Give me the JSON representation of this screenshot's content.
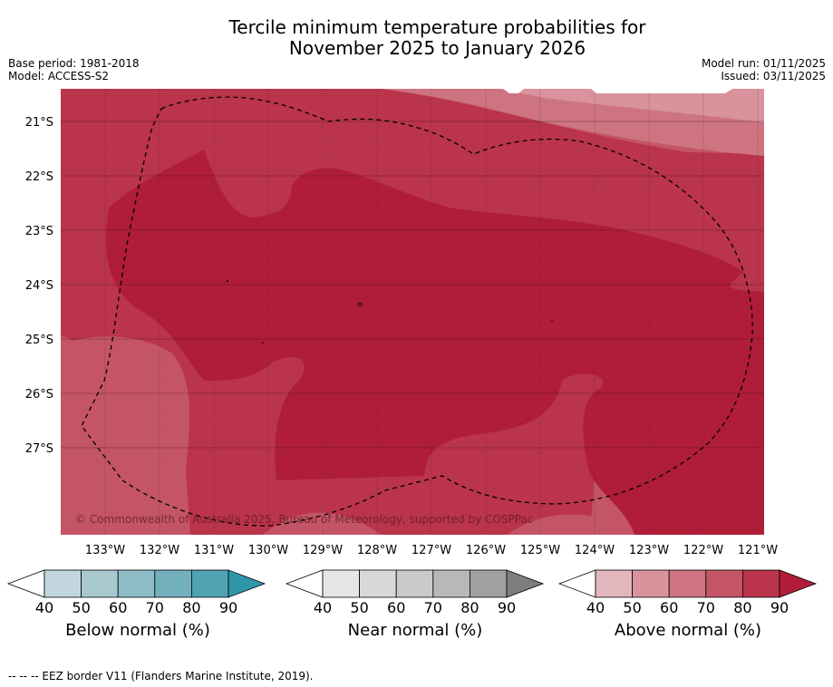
{
  "title": {
    "line1": "Tercile minimum temperature probabilities for",
    "line2": "November 2025 to January 2026"
  },
  "meta": {
    "base_period": "Base period: 1981-2018",
    "model": "Model: ACCESS-S2",
    "model_run": "Model run: 01/11/2025",
    "issued": "Issued: 03/11/2025"
  },
  "map": {
    "lat_labels": [
      "21°S",
      "22°S",
      "23°S",
      "24°S",
      "25°S",
      "26°S",
      "27°S"
    ],
    "lon_labels": [
      "133°W",
      "132°W",
      "131°W",
      "130°W",
      "129°W",
      "128°W",
      "127°W",
      "126°W",
      "125°W",
      "124°W",
      "123°W",
      "122°W",
      "121°W"
    ],
    "copyright": "© Commonwealth of Australia 2025, Bureau of Meteorology, supported by COSPPac"
  },
  "legends": [
    {
      "title": "Below normal (%)",
      "ticks": [
        "40",
        "50",
        "60",
        "70",
        "80",
        "90"
      ],
      "colors": [
        "#c1d7dd",
        "#a8c9d0",
        "#8ebcc7",
        "#73b0be",
        "#50a3b3",
        "#2f96aa"
      ]
    },
    {
      "title": "Near normal (%)",
      "ticks": [
        "40",
        "50",
        "60",
        "70",
        "80",
        "90"
      ],
      "colors": [
        "#e6e6e6",
        "#d8d8d8",
        "#cacaca",
        "#b8b8b8",
        "#a0a0a0",
        "#7e7e7e"
      ]
    },
    {
      "title": "Above normal (%)",
      "ticks": [
        "40",
        "50",
        "60",
        "70",
        "80",
        "90"
      ],
      "colors": [
        "#e3b6bd",
        "#d8939d",
        "#cd7480",
        "#c45566",
        "#ba344b",
        "#af1d39"
      ]
    }
  ],
  "footer": "--  --  -- EEZ border V11 (Flanders Marine Institute, 2019)."
}
